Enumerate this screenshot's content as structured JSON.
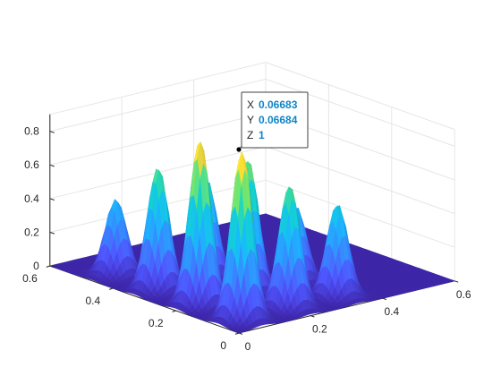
{
  "chart_data": {
    "type": "surface",
    "title": "",
    "xlabel": "",
    "ylabel": "",
    "zlabel": "",
    "xlim": [
      0,
      0.6
    ],
    "ylim": [
      0,
      0.6
    ],
    "zlim": [
      0,
      0.9
    ],
    "x_ticks": [
      "0",
      "0.2",
      "0.4",
      "0.6"
    ],
    "y_ticks": [
      "0",
      "0.2",
      "0.4",
      "0.6"
    ],
    "z_ticks": [
      "0",
      "0.2",
      "0.4",
      "0.6",
      "0.8"
    ],
    "grid": true,
    "colormap": "parula",
    "peaks": [
      {
        "x": 0.067,
        "y": 0.067,
        "z": 1.0
      },
      {
        "x": 0.2,
        "y": 0.067,
        "z": 0.73
      },
      {
        "x": 0.333,
        "y": 0.067,
        "z": 0.55
      },
      {
        "x": 0.067,
        "y": 0.2,
        "z": 0.98
      },
      {
        "x": 0.2,
        "y": 0.2,
        "z": 0.8
      },
      {
        "x": 0.067,
        "y": 0.333,
        "z": 0.73
      },
      {
        "x": 0.333,
        "y": 0.2,
        "z": 0.45
      },
      {
        "x": 0.2,
        "y": 0.333,
        "z": 0.6
      },
      {
        "x": 0.067,
        "y": 0.467,
        "z": 0.45
      }
    ]
  },
  "datatip": {
    "x_key": "X",
    "x_value": "0.06683",
    "y_key": "Y",
    "y_value": "0.06684",
    "z_key": "Z",
    "z_value": "1"
  },
  "colors": {
    "surface_low": "#3e26a8",
    "surface_mid": "#12bab4",
    "surface_high": "#f9fb15",
    "grid": "#e6e6e6",
    "axis": "#262626",
    "datatip_value": "#0f85c7"
  }
}
